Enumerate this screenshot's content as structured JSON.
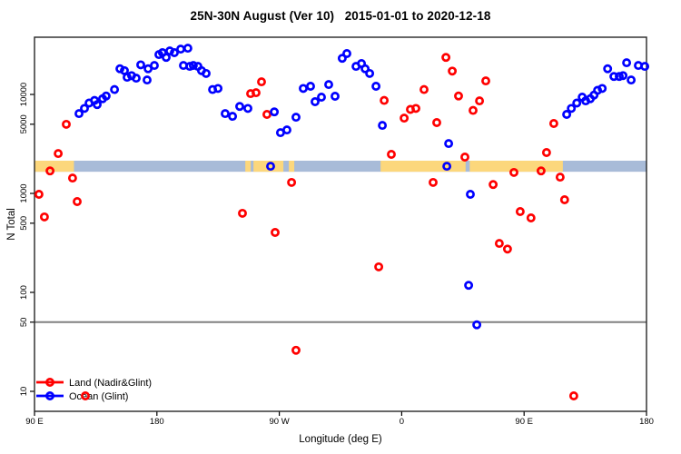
{
  "chart_data": {
    "type": "scatter",
    "title": "25N-30N August (Ver 10)   2015-01-01 to 2020-12-18",
    "xlabel": "Longitude (deg E)",
    "ylabel": "N Total",
    "x_axis": {
      "min": 90,
      "max": 540,
      "tick_values": [
        90,
        180,
        270,
        360,
        450,
        540
      ],
      "tick_labels": [
        "90 E",
        "180",
        "90 W",
        "0",
        "90 E",
        "180"
      ]
    },
    "y_axis": {
      "scale": "log",
      "min": 6,
      "max": 38000,
      "tick_values": [
        10,
        50,
        100,
        500,
        1000,
        5000,
        10000
      ],
      "tick_labels": [
        "10",
        "50",
        "100",
        "500",
        "1000",
        "5000",
        "10000"
      ]
    },
    "reference_line": {
      "y": 50,
      "color": "#808080"
    },
    "coast_band": {
      "n_low": 1655,
      "n_high": 2140,
      "ocean_color": "#a8bbd8",
      "land_color": "#fcd77c",
      "land_segments_lon": [
        [
          90,
          119
        ],
        [
          245,
          249
        ],
        [
          251,
          273
        ],
        [
          277,
          281
        ],
        [
          344.5,
          407
        ],
        [
          410,
          478.5
        ]
      ]
    },
    "legend": {
      "position": "bottom-left"
    },
    "series": [
      {
        "name": "Land (Nadir&Glint)",
        "color": "#ff0000",
        "points": [
          [
            93.3,
            979
          ],
          [
            97.3,
            578
          ],
          [
            101.4,
            1690
          ],
          [
            107.4,
            2530
          ],
          [
            113.4,
            4990
          ],
          [
            118,
            1430
          ],
          [
            121.4,
            827
          ],
          [
            127.4,
            9
          ],
          [
            242.9,
            629
          ],
          [
            248.9,
            10200
          ],
          [
            252.9,
            10400
          ],
          [
            256.9,
            13400
          ],
          [
            260.9,
            6280
          ],
          [
            266.9,
            403
          ],
          [
            279,
            1290
          ],
          [
            282.3,
            26
          ],
          [
            343.1,
            181
          ],
          [
            347.1,
            8690
          ],
          [
            352.4,
            2480
          ],
          [
            361.8,
            5760
          ],
          [
            366.4,
            7060
          ],
          [
            370.4,
            7230
          ],
          [
            376.4,
            11200
          ],
          [
            383.1,
            1290
          ],
          [
            385.8,
            5200
          ],
          [
            392.5,
            23700
          ],
          [
            397.2,
            17200
          ],
          [
            401.8,
            9640
          ],
          [
            406.5,
            2330
          ],
          [
            412.5,
            6900
          ],
          [
            417.2,
            8600
          ],
          [
            421.8,
            13700
          ],
          [
            427.2,
            1230
          ],
          [
            431.8,
            312
          ],
          [
            437.8,
            274
          ],
          [
            442.5,
            1630
          ],
          [
            447.1,
            655
          ],
          [
            455.1,
            565
          ],
          [
            462.5,
            1690
          ],
          [
            466.5,
            2590
          ],
          [
            471.8,
            5090
          ],
          [
            476.5,
            1460
          ],
          [
            479.8,
            863
          ],
          [
            486.5,
            9
          ]
        ]
      },
      {
        "name": "Ocean (Glint)",
        "color": "#0000ff",
        "points": [
          [
            122.7,
            6410
          ],
          [
            126.7,
            7230
          ],
          [
            130.1,
            8180
          ],
          [
            134.1,
            8690
          ],
          [
            136.1,
            7890
          ],
          [
            140.1,
            9060
          ],
          [
            142.7,
            9640
          ],
          [
            148.8,
            11200
          ],
          [
            152.8,
            18200
          ],
          [
            156.1,
            17400
          ],
          [
            158.1,
            14900
          ],
          [
            161.4,
            15500
          ],
          [
            164.8,
            14600
          ],
          [
            168.1,
            19900
          ],
          [
            172.8,
            14000
          ],
          [
            173.5,
            18200
          ],
          [
            178.1,
            19600
          ],
          [
            181.5,
            25300
          ],
          [
            184.1,
            26400
          ],
          [
            186.8,
            23700
          ],
          [
            189.5,
            27500
          ],
          [
            192.8,
            26400
          ],
          [
            197.5,
            28700
          ],
          [
            199.5,
            19600
          ],
          [
            202.8,
            29300
          ],
          [
            204.2,
            19200
          ],
          [
            206.8,
            19600
          ],
          [
            210.2,
            19200
          ],
          [
            212.8,
            17400
          ],
          [
            216.2,
            16300
          ],
          [
            220.9,
            11200
          ],
          [
            224.9,
            11500
          ],
          [
            230.2,
            6410
          ],
          [
            235.6,
            6010
          ],
          [
            240.9,
            7560
          ],
          [
            246.9,
            7230
          ],
          [
            263.6,
            1880
          ],
          [
            266.3,
            6670
          ],
          [
            270.9,
            4110
          ],
          [
            275.6,
            4380
          ],
          [
            282.3,
            5890
          ],
          [
            287.6,
            11500
          ],
          [
            293,
            12100
          ],
          [
            296.3,
            8440
          ],
          [
            301,
            9380
          ],
          [
            306.3,
            12600
          ],
          [
            311,
            9580
          ],
          [
            316.3,
            23200
          ],
          [
            319.7,
            25900
          ],
          [
            326.4,
            19200
          ],
          [
            330.4,
            20500
          ],
          [
            333.1,
            18200
          ],
          [
            336.4,
            16300
          ],
          [
            341.1,
            12100
          ],
          [
            345.8,
            4870
          ],
          [
            393.2,
            1880
          ],
          [
            394.5,
            3190
          ],
          [
            409.2,
            118
          ],
          [
            410.5,
            979
          ],
          [
            415.2,
            47
          ],
          [
            481.3,
            6280
          ],
          [
            484.7,
            7230
          ],
          [
            488.7,
            8180
          ],
          [
            492.7,
            9380
          ],
          [
            495.3,
            8600
          ],
          [
            498.7,
            9060
          ],
          [
            501.4,
            9850
          ],
          [
            504,
            11000
          ],
          [
            507.4,
            11500
          ],
          [
            511.4,
            18200
          ],
          [
            516,
            15200
          ],
          [
            520,
            15200
          ],
          [
            522.7,
            15500
          ],
          [
            525.4,
            20900
          ],
          [
            528.7,
            14000
          ],
          [
            534,
            19600
          ],
          [
            538.7,
            19200
          ]
        ]
      }
    ]
  }
}
